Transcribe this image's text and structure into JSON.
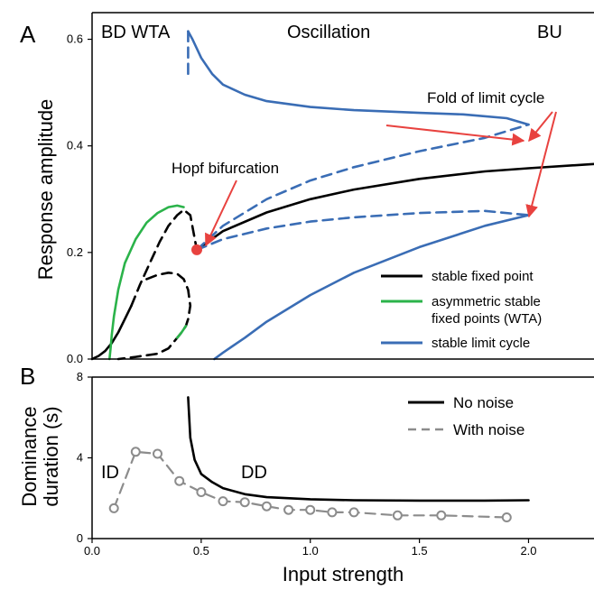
{
  "colors": {
    "stable": "#000000",
    "wta": "#2bb34a",
    "limit_cycle": "#3a6db5",
    "noise": "#8c8c8c",
    "annotation": "#e8423f"
  },
  "chart_data": [
    {
      "panel": "A",
      "type": "line",
      "ylabel": "Response amplitude",
      "xlim": [
        0,
        2.3
      ],
      "ylim": [
        0,
        0.65
      ],
      "yticks": [
        0.0,
        0.2,
        0.4,
        0.6
      ],
      "ytick_labels": [
        "0.0",
        "0.2",
        "0.4",
        "0.6"
      ],
      "regions": [
        "BD WTA",
        "Oscillation",
        "BU"
      ],
      "legend": [
        {
          "label": "stable fixed point",
          "series": "stable"
        },
        {
          "label": "asymmetric stable fixed points (WTA)",
          "series": "wta"
        },
        {
          "label": "stable limit cycle",
          "series": "limit_cycle"
        }
      ],
      "annotations": [
        "Hopf bifurcation",
        "Fold of limit cycle"
      ],
      "hopf_point": {
        "x": 0.48,
        "y": 0.205
      },
      "series": [
        {
          "id": "stable_low",
          "style": "solid",
          "color": "stable",
          "x": [
            0.0,
            0.03,
            0.06,
            0.09,
            0.12,
            0.15,
            0.18
          ],
          "y": [
            0.0,
            0.006,
            0.015,
            0.03,
            0.05,
            0.075,
            0.1
          ]
        },
        {
          "id": "stable_high",
          "style": "solid",
          "color": "stable",
          "x": [
            0.48,
            0.6,
            0.8,
            1.0,
            1.2,
            1.5,
            1.8,
            2.0,
            2.3
          ],
          "y": [
            0.205,
            0.24,
            0.275,
            0.3,
            0.318,
            0.338,
            0.352,
            0.358,
            0.366
          ]
        },
        {
          "id": "unstable_fixed_upper",
          "style": "dashed",
          "color": "stable",
          "x": [
            0.18,
            0.22,
            0.27,
            0.31,
            0.35,
            0.39,
            0.42,
            0.45,
            0.48
          ],
          "y": [
            0.1,
            0.14,
            0.185,
            0.22,
            0.25,
            0.27,
            0.28,
            0.27,
            0.205
          ]
        },
        {
          "id": "unstable_fixed_lower",
          "style": "dashed",
          "color": "stable",
          "x": [
            0.25,
            0.3,
            0.35,
            0.39,
            0.42,
            0.44,
            0.45,
            0.44,
            0.43,
            0.41,
            0.39,
            0.35,
            0.3,
            0.2,
            0.12
          ],
          "y": [
            0.15,
            0.158,
            0.162,
            0.16,
            0.15,
            0.13,
            0.1,
            0.075,
            0.062,
            0.05,
            0.04,
            0.02,
            0.01,
            0.004,
            0.0
          ]
        },
        {
          "id": "wta_upper",
          "style": "solid",
          "color": "wta",
          "x": [
            0.09,
            0.1,
            0.12,
            0.15,
            0.2,
            0.25,
            0.3,
            0.35,
            0.39,
            0.42
          ],
          "y": [
            0.045,
            0.08,
            0.13,
            0.18,
            0.225,
            0.256,
            0.274,
            0.285,
            0.288,
            0.285
          ]
        },
        {
          "id": "wta_lower",
          "style": "solid",
          "color": "wta",
          "x": [
            0.09,
            0.085,
            0.08
          ],
          "y": [
            0.045,
            0.02,
            0.0
          ]
        },
        {
          "id": "wta_lower_right",
          "style": "solid",
          "color": "wta",
          "x": [
            0.39,
            0.41,
            0.43
          ],
          "y": [
            0.04,
            0.05,
            0.062
          ]
        },
        {
          "id": "limit_upper",
          "style": "solid",
          "color": "limit_cycle",
          "x": [
            0.44,
            0.46,
            0.5,
            0.55,
            0.6,
            0.7,
            0.8,
            1.0,
            1.2,
            1.5,
            1.7,
            1.9,
            2.0
          ],
          "y": [
            0.615,
            0.6,
            0.565,
            0.535,
            0.515,
            0.496,
            0.484,
            0.473,
            0.467,
            0.462,
            0.459,
            0.452,
            0.44
          ]
        },
        {
          "id": "limit_upper_drop",
          "style": "dashed",
          "color": "limit_cycle",
          "x": [
            0.44,
            0.44
          ],
          "y": [
            0.615,
            0.525
          ]
        },
        {
          "id": "limit_upper_unstable",
          "style": "dashed",
          "color": "limit_cycle",
          "x": [
            0.48,
            0.6,
            0.8,
            1.0,
            1.2,
            1.5,
            1.8,
            2.0
          ],
          "y": [
            0.205,
            0.25,
            0.3,
            0.335,
            0.36,
            0.39,
            0.415,
            0.44
          ]
        },
        {
          "id": "limit_lower_unstable",
          "style": "dashed",
          "color": "limit_cycle",
          "x": [
            0.48,
            0.6,
            0.8,
            1.0,
            1.2,
            1.5,
            1.8,
            2.0
          ],
          "y": [
            0.205,
            0.225,
            0.245,
            0.258,
            0.266,
            0.274,
            0.278,
            0.27
          ]
        },
        {
          "id": "limit_lower",
          "style": "solid",
          "color": "limit_cycle",
          "x": [
            0.56,
            0.6,
            0.7,
            0.8,
            1.0,
            1.2,
            1.5,
            1.8,
            2.0
          ],
          "y": [
            0.0,
            0.012,
            0.04,
            0.07,
            0.12,
            0.162,
            0.21,
            0.25,
            0.27
          ]
        }
      ]
    },
    {
      "panel": "B",
      "type": "line",
      "xlabel": "Input strength",
      "ylabel": "Dominance duration (s)",
      "xlim": [
        0,
        2.3
      ],
      "ylim": [
        0,
        8
      ],
      "xticks": [
        0.0,
        0.5,
        1.0,
        1.5,
        2.0
      ],
      "xtick_labels": [
        "0.0",
        "0.5",
        "1.0",
        "1.5",
        "2.0"
      ],
      "yticks": [
        0,
        4,
        8
      ],
      "ytick_labels": [
        "0",
        "4",
        "8"
      ],
      "regions": [
        "ID",
        "DD"
      ],
      "legend": [
        {
          "label": "No noise",
          "series": "no_noise"
        },
        {
          "label": "With noise",
          "series": "with_noise"
        }
      ],
      "series": [
        {
          "id": "no_noise",
          "name": "No noise",
          "style": "solid",
          "color": "stable",
          "x": [
            0.44,
            0.45,
            0.47,
            0.5,
            0.55,
            0.6,
            0.7,
            0.8,
            1.0,
            1.2,
            1.5,
            1.8,
            2.0
          ],
          "y": [
            7.0,
            5.0,
            3.9,
            3.2,
            2.8,
            2.5,
            2.2,
            2.05,
            1.95,
            1.9,
            1.88,
            1.88,
            1.9
          ]
        },
        {
          "id": "with_noise",
          "name": "With noise",
          "style": "dashed",
          "color": "noise",
          "markers": true,
          "x": [
            0.1,
            0.2,
            0.3,
            0.4,
            0.5,
            0.6,
            0.7,
            0.8,
            0.9,
            1.0,
            1.1,
            1.2,
            1.4,
            1.6,
            1.9
          ],
          "y": [
            1.5,
            4.3,
            4.2,
            2.85,
            2.3,
            1.85,
            1.8,
            1.6,
            1.42,
            1.42,
            1.3,
            1.3,
            1.15,
            1.15,
            1.05
          ]
        }
      ]
    }
  ]
}
